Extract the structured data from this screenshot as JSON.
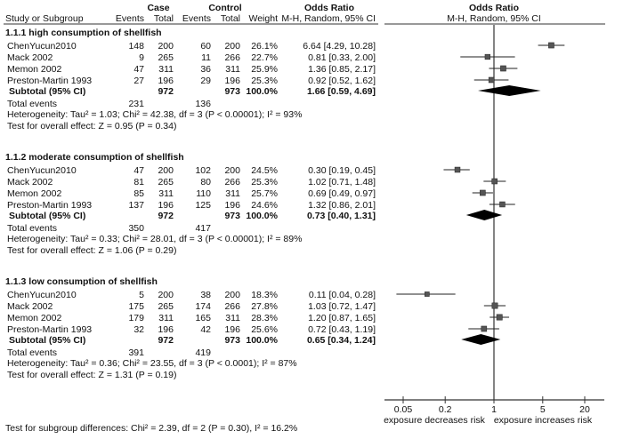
{
  "chart_data": {
    "type": "forest",
    "headers": {
      "case": "Case",
      "control": "Control",
      "odds_ratio": "Odds Ratio",
      "study": "Study or Subgroup",
      "events": "Events",
      "total": "Total",
      "weight": "Weight",
      "method": "M-H, Random, 95% CI",
      "plot_title": "Odds Ratio",
      "plot_method": "M-H, Random, 95% CI"
    },
    "subgroups": [
      {
        "title": "1.1.1 high consumption of shellfish",
        "studies": [
          {
            "name": "ChenYucun2010",
            "case_events": "148",
            "case_total": "200",
            "ctrl_events": "60",
            "ctrl_total": "200",
            "weight": "26.1%",
            "or_text": "6.64 [4.29, 10.28]",
            "or": 6.64,
            "lo": 4.29,
            "hi": 10.28,
            "w": 26.1
          },
          {
            "name": "Mack 2002",
            "case_events": "9",
            "case_total": "265",
            "ctrl_events": "11",
            "ctrl_total": "266",
            "weight": "22.7%",
            "or_text": "0.81 [0.33, 2.00]",
            "or": 0.81,
            "lo": 0.33,
            "hi": 2.0,
            "w": 22.7
          },
          {
            "name": "Memon 2002",
            "case_events": "47",
            "case_total": "311",
            "ctrl_events": "36",
            "ctrl_total": "311",
            "weight": "25.9%",
            "or_text": "1.36 [0.85, 2.17]",
            "or": 1.36,
            "lo": 0.85,
            "hi": 2.17,
            "w": 25.9
          },
          {
            "name": "Preston-Martin 1993",
            "case_events": "27",
            "case_total": "196",
            "ctrl_events": "29",
            "ctrl_total": "196",
            "weight": "25.3%",
            "or_text": "0.92 [0.52, 1.62]",
            "or": 0.92,
            "lo": 0.52,
            "hi": 1.62,
            "w": 25.3
          }
        ],
        "subtotal": {
          "label": "Subtotal (95% CI)",
          "case_total": "972",
          "ctrl_total": "973",
          "weight": "100.0%",
          "or_text": "1.66 [0.59, 4.69]",
          "or": 1.66,
          "lo": 0.59,
          "hi": 4.69
        },
        "total_events": {
          "label": "Total events",
          "case": "231",
          "ctrl": "136"
        },
        "heterogeneity": "Heterogeneity: Tau² = 1.03; Chi² = 42.38, df = 3 (P < 0.00001); I² = 93%",
        "overall": "Test for overall effect: Z = 0.95 (P = 0.34)"
      },
      {
        "title": "1.1.2 moderate consumption of shellfish",
        "studies": [
          {
            "name": "ChenYucun2010",
            "case_events": "47",
            "case_total": "200",
            "ctrl_events": "102",
            "ctrl_total": "200",
            "weight": "24.5%",
            "or_text": "0.30 [0.19, 0.45]",
            "or": 0.3,
            "lo": 0.19,
            "hi": 0.45,
            "w": 24.5
          },
          {
            "name": "Mack 2002",
            "case_events": "81",
            "case_total": "265",
            "ctrl_events": "80",
            "ctrl_total": "266",
            "weight": "25.3%",
            "or_text": "1.02 [0.71, 1.48]",
            "or": 1.02,
            "lo": 0.71,
            "hi": 1.48,
            "w": 25.3
          },
          {
            "name": "Memon 2002",
            "case_events": "85",
            "case_total": "311",
            "ctrl_events": "110",
            "ctrl_total": "311",
            "weight": "25.7%",
            "or_text": "0.69 [0.49, 0.97]",
            "or": 0.69,
            "lo": 0.49,
            "hi": 0.97,
            "w": 25.7
          },
          {
            "name": "Preston-Martin 1993",
            "case_events": "137",
            "case_total": "196",
            "ctrl_events": "125",
            "ctrl_total": "196",
            "weight": "24.6%",
            "or_text": "1.32 [0.86, 2.01]",
            "or": 1.32,
            "lo": 0.86,
            "hi": 2.01,
            "w": 24.6
          }
        ],
        "subtotal": {
          "label": "Subtotal (95% CI)",
          "case_total": "972",
          "ctrl_total": "973",
          "weight": "100.0%",
          "or_text": "0.73 [0.40, 1.31]",
          "or": 0.73,
          "lo": 0.4,
          "hi": 1.31
        },
        "total_events": {
          "label": "Total events",
          "case": "350",
          "ctrl": "417"
        },
        "heterogeneity": "Heterogeneity: Tau² = 0.33; Chi² = 28.01, df = 3 (P < 0.00001); I² = 89%",
        "overall": "Test for overall effect: Z = 1.06 (P = 0.29)"
      },
      {
        "title": "1.1.3 low consumption of shellfish",
        "studies": [
          {
            "name": "ChenYucun2010",
            "case_events": "5",
            "case_total": "200",
            "ctrl_events": "38",
            "ctrl_total": "200",
            "weight": "18.3%",
            "or_text": "0.11 [0.04, 0.28]",
            "or": 0.11,
            "lo": 0.04,
            "hi": 0.28,
            "w": 18.3
          },
          {
            "name": "Mack 2002",
            "case_events": "175",
            "case_total": "265",
            "ctrl_events": "174",
            "ctrl_total": "266",
            "weight": "27.8%",
            "or_text": "1.03 [0.72, 1.47]",
            "or": 1.03,
            "lo": 0.72,
            "hi": 1.47,
            "w": 27.8
          },
          {
            "name": "Memon 2002",
            "case_events": "179",
            "case_total": "311",
            "ctrl_events": "165",
            "ctrl_total": "311",
            "weight": "28.3%",
            "or_text": "1.20 [0.87, 1.65]",
            "or": 1.2,
            "lo": 0.87,
            "hi": 1.65,
            "w": 28.3
          },
          {
            "name": "Preston-Martin 1993",
            "case_events": "32",
            "case_total": "196",
            "ctrl_events": "42",
            "ctrl_total": "196",
            "weight": "25.6%",
            "or_text": "0.72 [0.43, 1.19]",
            "or": 0.72,
            "lo": 0.43,
            "hi": 1.19,
            "w": 25.6
          }
        ],
        "subtotal": {
          "label": "Subtotal (95% CI)",
          "case_total": "972",
          "ctrl_total": "973",
          "weight": "100.0%",
          "or_text": "0.65 [0.34, 1.24]",
          "or": 0.65,
          "lo": 0.34,
          "hi": 1.24
        },
        "total_events": {
          "label": "Total events",
          "case": "391",
          "ctrl": "419"
        },
        "heterogeneity": "Heterogeneity: Tau² = 0.36; Chi² = 23.55, df = 3 (P < 0.0001); I² = 87%",
        "overall": "Test for overall effect: Z = 1.31 (P = 0.19)"
      }
    ],
    "subgroup_test": "Test for subgroup differences: Chi² = 2.39, df = 2 (P = 0.30), I² = 16.2%",
    "x_axis": {
      "scale": "log",
      "ticks": [
        0.05,
        0.2,
        1,
        5,
        20
      ],
      "tick_labels": [
        "0.05",
        "0.2",
        "1",
        "5",
        "20"
      ],
      "left_label": "exposure decreases risk",
      "right_label": "exposure increases risk",
      "range": [
        0.035,
        28
      ]
    }
  }
}
